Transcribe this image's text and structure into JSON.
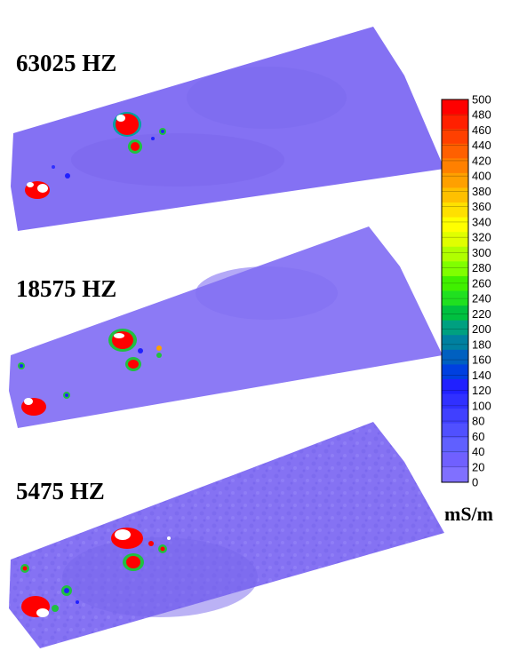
{
  "panels": [
    {
      "label": "63025 HZ"
    },
    {
      "label": "18575 HZ"
    },
    {
      "label": "5475 HZ"
    }
  ],
  "colorbar": {
    "units": "mS/m",
    "ticks": [
      "500",
      "480",
      "460",
      "440",
      "420",
      "400",
      "380",
      "360",
      "340",
      "320",
      "300",
      "280",
      "260",
      "240",
      "220",
      "200",
      "180",
      "160",
      "140",
      "120",
      "100",
      "80",
      "60",
      "40",
      "20",
      "0"
    ],
    "colors": [
      "#ff0000",
      "#ff2000",
      "#ff4000",
      "#ff6000",
      "#ff8000",
      "#ffa000",
      "#ffc000",
      "#ffe000",
      "#ffff00",
      "#e0ff00",
      "#b0ff00",
      "#80ff00",
      "#40f000",
      "#20e020",
      "#00c040",
      "#00a080",
      "#0080a0",
      "#0060c0",
      "#0040e0",
      "#2020ff",
      "#3030ff",
      "#4040ff",
      "#5050ff",
      "#6060ff",
      "#7060ff",
      "#8070ff"
    ]
  },
  "colors": {
    "background_field": "#8270f2",
    "field_light": "#8c7af4",
    "anomaly_high": "#ff0000",
    "anomaly_white": "#ffffff",
    "anomaly_green": "#20c040",
    "anomaly_blue": "#2020ff"
  }
}
